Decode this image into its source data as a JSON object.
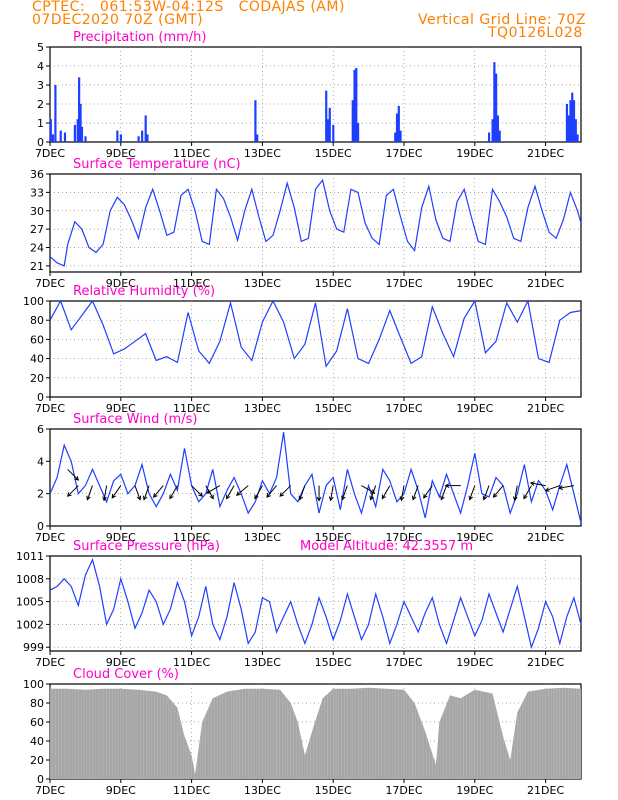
{
  "header": {
    "line1": "CPTEC:   061:53W-04:12S   CODAJAS (AM)",
    "line2": "07DEC2020 70Z (GMT)",
    "grid_note": "Vertical Grid Line: 70Z",
    "code": "TQ0126L028"
  },
  "colors": {
    "header": "#ff7f00",
    "panel_title": "#ff00c8",
    "series": "#1f3fff",
    "cloud": "#a6a6a6",
    "grid": "#888888"
  },
  "model_altitude_label": "Model Altitude: 42.3557 m",
  "x_axis": {
    "start": "07DEC",
    "ticks": [
      "7DEC",
      "9DEC",
      "11DEC",
      "13DEC",
      "15DEC",
      "17DEC",
      "19DEC",
      "21DEC"
    ],
    "tick_days": [
      7,
      9,
      11,
      13,
      15,
      17,
      19,
      21
    ],
    "range_days": [
      7,
      22
    ]
  },
  "chart_data": [
    {
      "type": "bar",
      "title": "Precipitation (mm/h)",
      "ylim": [
        0,
        5
      ],
      "yticks": [
        "0",
        "1",
        "2",
        "3",
        "4",
        "5"
      ],
      "x": [
        7.02,
        7.08,
        7.15,
        7.3,
        7.42,
        7.7,
        7.78,
        7.82,
        7.86,
        7.9,
        8.0,
        8.9,
        9.0,
        9.5,
        9.6,
        9.7,
        9.75,
        12.8,
        12.85,
        14.8,
        14.85,
        14.9,
        15.0,
        15.55,
        15.6,
        15.65,
        15.7,
        16.75,
        16.8,
        16.85,
        16.9,
        19.4,
        19.5,
        19.55,
        19.6,
        19.65,
        19.7,
        21.6,
        21.65,
        21.7,
        21.75,
        21.8,
        21.85,
        21.9
      ],
      "values": [
        1.2,
        0.4,
        3.0,
        0.6,
        0.5,
        0.9,
        1.2,
        3.4,
        2.0,
        0.8,
        0.3,
        0.6,
        0.4,
        0.3,
        0.6,
        1.4,
        0.4,
        2.2,
        0.4,
        2.7,
        1.2,
        1.8,
        0.9,
        2.2,
        3.8,
        3.9,
        1.0,
        0.5,
        1.5,
        1.9,
        0.6,
        0.5,
        1.2,
        4.2,
        3.6,
        1.4,
        0.6,
        2.0,
        1.4,
        2.2,
        2.6,
        2.2,
        1.2,
        0.4
      ]
    },
    {
      "type": "line",
      "title": "Surface Temperature (nC)",
      "ylim": [
        20,
        36
      ],
      "yticks": [
        "21",
        "24",
        "27",
        "30",
        "33",
        "36"
      ],
      "series": [
        {
          "x": [
            7.0,
            7.2,
            7.4,
            7.5,
            7.7,
            7.9,
            8.1,
            8.3,
            8.5,
            8.7,
            8.9,
            9.1,
            9.3,
            9.5,
            9.7,
            9.9,
            10.1,
            10.3,
            10.5,
            10.7,
            10.9,
            11.1,
            11.3,
            11.5,
            11.7,
            11.9,
            12.1,
            12.3,
            12.5,
            12.7,
            12.9,
            13.1,
            13.3,
            13.5,
            13.7,
            13.9,
            14.1,
            14.3,
            14.5,
            14.7,
            14.9,
            15.1,
            15.3,
            15.5,
            15.7,
            15.9,
            16.1,
            16.3,
            16.5,
            16.7,
            16.9,
            17.1,
            17.3,
            17.5,
            17.7,
            17.9,
            18.1,
            18.3,
            18.5,
            18.7,
            18.9,
            19.1,
            19.3,
            19.5,
            19.7,
            19.9,
            20.1,
            20.3,
            20.5,
            20.7,
            20.9,
            21.1,
            21.3,
            21.5,
            21.7,
            21.9,
            22.0
          ],
          "values": [
            22.5,
            21.5,
            21.0,
            24.5,
            28.2,
            27.0,
            24.0,
            23.2,
            24.5,
            30.0,
            32.2,
            31.0,
            28.5,
            25.5,
            30.5,
            33.5,
            30.0,
            26.0,
            26.5,
            32.5,
            33.5,
            30.0,
            25.0,
            24.5,
            33.5,
            32.0,
            29.0,
            25.2,
            30.0,
            33.5,
            29.0,
            25.0,
            26.0,
            30.0,
            34.5,
            30.5,
            25.0,
            25.5,
            33.5,
            35.0,
            30.0,
            27.0,
            26.5,
            33.5,
            33.0,
            28.0,
            25.5,
            24.5,
            32.5,
            33.5,
            29.0,
            25.0,
            23.5,
            30.5,
            34.0,
            28.5,
            25.5,
            25.0,
            31.5,
            33.5,
            29.0,
            25.0,
            24.5,
            33.5,
            31.5,
            29.0,
            25.5,
            25.0,
            30.5,
            34.0,
            30.0,
            26.5,
            25.5,
            28.5,
            33.0,
            30.0,
            28.0
          ]
        }
      ]
    },
    {
      "type": "line",
      "title": "Relative Humidity (%)",
      "ylim": [
        0,
        100
      ],
      "yticks": [
        "0",
        "20",
        "40",
        "60",
        "80",
        "100"
      ],
      "series": [
        {
          "x": [
            7.0,
            7.3,
            7.6,
            7.9,
            8.2,
            8.5,
            8.8,
            9.1,
            9.4,
            9.7,
            10.0,
            10.3,
            10.6,
            10.9,
            11.2,
            11.5,
            11.8,
            12.1,
            12.4,
            12.7,
            13.0,
            13.3,
            13.6,
            13.9,
            14.2,
            14.5,
            14.8,
            15.1,
            15.4,
            15.7,
            16.0,
            16.3,
            16.6,
            16.9,
            17.2,
            17.5,
            17.8,
            18.1,
            18.4,
            18.7,
            19.0,
            19.3,
            19.6,
            19.9,
            20.2,
            20.5,
            20.8,
            21.1,
            21.4,
            21.7,
            22.0
          ],
          "values": [
            80,
            100,
            70,
            85,
            100,
            75,
            45,
            50,
            58,
            66,
            38,
            42,
            36,
            88,
            48,
            35,
            58,
            98,
            52,
            38,
            78,
            100,
            78,
            40,
            55,
            98,
            32,
            48,
            92,
            40,
            35,
            60,
            90,
            62,
            35,
            42,
            94,
            66,
            42,
            82,
            100,
            46,
            58,
            98,
            78,
            100,
            40,
            36,
            80,
            88,
            90
          ]
        }
      ]
    },
    {
      "type": "line",
      "title": "Surface Wind (m/s)",
      "ylim": [
        0,
        6
      ],
      "yticks": [
        "0",
        "2",
        "4",
        "6"
      ],
      "series": [
        {
          "x": [
            7.0,
            7.2,
            7.4,
            7.6,
            7.8,
            8.0,
            8.2,
            8.4,
            8.6,
            8.8,
            9.0,
            9.2,
            9.4,
            9.6,
            9.8,
            10.0,
            10.2,
            10.4,
            10.6,
            10.8,
            11.0,
            11.2,
            11.4,
            11.6,
            11.8,
            12.0,
            12.2,
            12.4,
            12.6,
            12.8,
            13.0,
            13.2,
            13.4,
            13.6,
            13.8,
            14.0,
            14.2,
            14.4,
            14.6,
            14.8,
            15.0,
            15.2,
            15.4,
            15.6,
            15.8,
            16.0,
            16.2,
            16.4,
            16.6,
            16.8,
            17.0,
            17.2,
            17.4,
            17.6,
            17.8,
            18.0,
            18.2,
            18.4,
            18.6,
            18.8,
            19.0,
            19.2,
            19.4,
            19.6,
            19.8,
            20.0,
            20.2,
            20.4,
            20.6,
            20.8,
            21.0,
            21.2,
            21.4,
            21.6,
            21.8,
            22.0
          ],
          "values": [
            2.0,
            3.0,
            5.0,
            4.0,
            2.0,
            2.5,
            3.5,
            2.5,
            1.5,
            2.8,
            3.2,
            2.0,
            2.5,
            3.8,
            2.0,
            1.2,
            2.0,
            3.2,
            2.2,
            4.8,
            2.5,
            1.5,
            2.0,
            3.5,
            1.2,
            2.2,
            3.0,
            2.0,
            0.8,
            1.5,
            2.8,
            2.0,
            3.0,
            5.8,
            2.0,
            1.5,
            2.5,
            3.2,
            0.8,
            2.5,
            3.0,
            1.0,
            3.5,
            2.0,
            0.8,
            2.5,
            1.2,
            3.5,
            2.8,
            1.5,
            2.0,
            3.5,
            2.2,
            0.5,
            2.8,
            1.8,
            3.2,
            2.0,
            0.8,
            2.5,
            4.5,
            2.0,
            1.8,
            3.0,
            2.5,
            0.8,
            2.0,
            3.8,
            1.5,
            2.8,
            2.2,
            1.0,
            2.5,
            3.8,
            2.0,
            0.2
          ]
        }
      ],
      "barbs": {
        "x": [
          7.5,
          7.8,
          8.2,
          8.6,
          9.0,
          9.4,
          9.8,
          10.2,
          10.6,
          11.0,
          11.4,
          11.8,
          12.2,
          12.6,
          13.0,
          13.4,
          13.8,
          14.2,
          14.6,
          15.0,
          15.4,
          15.8,
          16.2,
          16.6,
          17.0,
          17.4,
          17.8,
          18.2,
          18.6,
          19.0,
          19.4,
          19.8,
          20.2,
          20.6,
          21.0,
          21.4,
          21.8
        ],
        "dir_deg": [
          135,
          225,
          200,
          190,
          215,
          160,
          200,
          220,
          210,
          135,
          150,
          240,
          210,
          230,
          210,
          220,
          225,
          200,
          180,
          190,
          200,
          120,
          200,
          210,
          190,
          200,
          215,
          200,
          270,
          200,
          200,
          220,
          190,
          210,
          280,
          250,
          260
        ],
        "lengths": [
          3,
          2,
          2,
          2,
          2,
          2,
          2,
          2,
          2,
          2,
          2,
          2,
          2,
          2,
          2,
          2,
          2,
          2,
          2,
          2,
          2,
          2,
          2,
          2,
          2,
          2,
          2,
          2,
          2,
          2,
          2,
          2,
          2,
          2,
          2,
          2,
          2
        ]
      }
    },
    {
      "type": "line",
      "title": "Surface Pressure (hPa)",
      "ylim": [
        998.5,
        1011
      ],
      "yticks": [
        "999",
        "1002",
        "1005",
        "1008",
        "1011"
      ],
      "series": [
        {
          "x": [
            7.0,
            7.2,
            7.4,
            7.6,
            7.8,
            8.0,
            8.2,
            8.4,
            8.6,
            8.8,
            9.0,
            9.2,
            9.4,
            9.6,
            9.8,
            10.0,
            10.2,
            10.4,
            10.6,
            10.8,
            11.0,
            11.2,
            11.4,
            11.6,
            11.8,
            12.0,
            12.2,
            12.4,
            12.6,
            12.8,
            13.0,
            13.2,
            13.4,
            13.6,
            13.8,
            14.0,
            14.2,
            14.4,
            14.6,
            14.8,
            15.0,
            15.2,
            15.4,
            15.6,
            15.8,
            16.0,
            16.2,
            16.4,
            16.6,
            16.8,
            17.0,
            17.2,
            17.4,
            17.6,
            17.8,
            18.0,
            18.2,
            18.4,
            18.6,
            18.8,
            19.0,
            19.2,
            19.4,
            19.6,
            19.8,
            20.0,
            20.2,
            20.4,
            20.6,
            20.8,
            21.0,
            21.2,
            21.4,
            21.6,
            21.8,
            22.0
          ],
          "values": [
            1006.5,
            1007.0,
            1008.0,
            1007.0,
            1004.5,
            1008.5,
            1010.5,
            1007.0,
            1002.0,
            1004.0,
            1008.0,
            1005.0,
            1001.5,
            1003.5,
            1006.5,
            1005.0,
            1002.0,
            1004.0,
            1007.5,
            1005.0,
            1000.5,
            1003.0,
            1007.0,
            1002.0,
            1000.0,
            1003.0,
            1007.5,
            1004.0,
            999.5,
            1001.0,
            1005.5,
            1005.0,
            1001.0,
            1003.0,
            1005.0,
            1002.0,
            999.5,
            1002.0,
            1005.5,
            1003.0,
            1000.0,
            1002.5,
            1006.0,
            1003.0,
            1000.0,
            1002.0,
            1006.0,
            1003.0,
            999.5,
            1002.0,
            1005.0,
            1003.0,
            1001.0,
            1003.5,
            1005.5,
            1002.0,
            999.5,
            1002.5,
            1005.5,
            1003.0,
            1000.5,
            1002.5,
            1006.0,
            1003.5,
            1001.0,
            1004.0,
            1007.0,
            1003.0,
            999.0,
            1001.5,
            1005.0,
            1003.0,
            999.5,
            1003.0,
            1005.5,
            1002.0
          ]
        }
      ]
    },
    {
      "type": "area",
      "title": "Cloud Cover (%)",
      "ylim": [
        0,
        100
      ],
      "yticks": [
        "0",
        "20",
        "40",
        "60",
        "80",
        "100"
      ],
      "series": [
        {
          "x": [
            7.0,
            7.5,
            8.0,
            8.5,
            9.0,
            9.5,
            10.0,
            10.3,
            10.6,
            10.8,
            11.0,
            11.1,
            11.3,
            11.6,
            12.0,
            12.5,
            13.0,
            13.5,
            13.8,
            14.0,
            14.2,
            14.4,
            14.7,
            15.0,
            15.5,
            16.0,
            16.5,
            17.0,
            17.3,
            17.6,
            17.9,
            18.0,
            18.3,
            18.6,
            19.0,
            19.5,
            19.8,
            20.0,
            20.2,
            20.5,
            21.0,
            21.5,
            22.0
          ],
          "values": [
            95,
            95,
            94,
            95,
            95,
            94,
            92,
            88,
            75,
            45,
            25,
            5,
            60,
            85,
            92,
            95,
            95,
            94,
            80,
            60,
            25,
            50,
            85,
            95,
            95,
            96,
            95,
            94,
            80,
            50,
            15,
            60,
            88,
            85,
            94,
            90,
            45,
            20,
            70,
            92,
            95,
            96,
            95
          ]
        }
      ]
    }
  ]
}
